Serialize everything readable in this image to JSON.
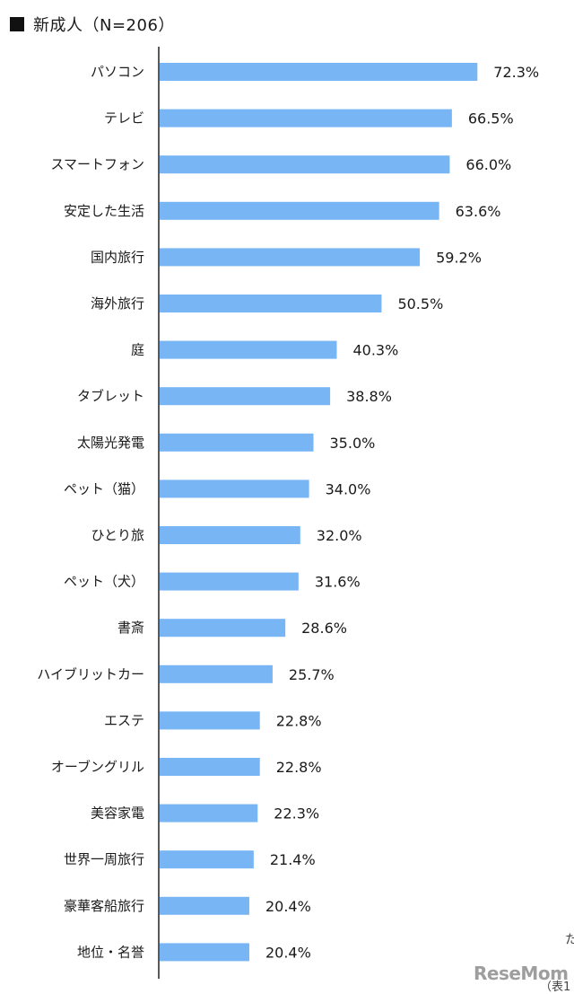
{
  "header": {
    "title": "新成人（N=206）"
  },
  "chart_data": {
    "type": "bar",
    "orientation": "horizontal",
    "title": "新成人（N=206）",
    "xlabel": "",
    "ylabel": "",
    "xlim": [
      0,
      100
    ],
    "grid": false,
    "bar_color": "#77b5f5",
    "categories": [
      "パソコン",
      "テレビ",
      "スマートフォン",
      "安定した生活",
      "国内旅行",
      "海外旅行",
      "庭",
      "タブレット",
      "太陽光発電",
      "ペット（猫）",
      "ひとり旅",
      "ペット（犬）",
      "書斎",
      "ハイブリットカー",
      "エステ",
      "オーブングリル",
      "美容家電",
      "世界一周旅行",
      "豪華客船旅行",
      "地位・名誉"
    ],
    "values": [
      72.3,
      66.5,
      66.0,
      63.6,
      59.2,
      50.5,
      40.3,
      38.8,
      35.0,
      34.0,
      32.0,
      31.6,
      28.6,
      25.7,
      22.8,
      22.8,
      22.3,
      21.4,
      20.4,
      20.4
    ],
    "labels": [
      "72.3%",
      "66.5%",
      "66.0%",
      "63.6%",
      "59.2%",
      "50.5%",
      "40.3%",
      "38.8%",
      "35.0%",
      "34.0%",
      "32.0%",
      "31.6%",
      "28.6%",
      "25.7%",
      "22.8%",
      "22.8%",
      "22.3%",
      "21.4%",
      "20.4%",
      "20.4%"
    ]
  },
  "watermark": {
    "text": "ReseMom"
  },
  "edge_text": {
    "right": "た",
    "bottom": "（表1"
  }
}
